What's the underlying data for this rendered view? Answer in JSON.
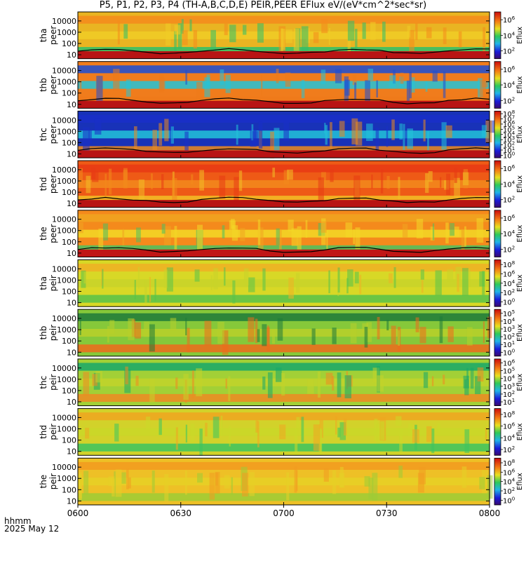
{
  "title": "P5, P1, P2, P3, P4 (TH-A,B,C,D,E) PEIR,PEER EFlux eV/(eV*cm^2*sec*sr)",
  "footer": {
    "hhmm": "hhmm",
    "date": "2025 May 12"
  },
  "colorbar_label": "Eflux",
  "x_ticks": [
    "0600",
    "0630",
    "0700",
    "0730",
    "0800"
  ],
  "chart_data": {
    "type": "heatmap",
    "x_range": [
      "0600",
      "0800"
    ],
    "x_unit": "hhmm",
    "date": "2025 May 12",
    "panels": [
      {
        "probe": "tha",
        "species": "peer",
        "ylabel": [
          "tha",
          "peer"
        ],
        "y_ticks": [
          "10",
          "100",
          "1000",
          "10000"
        ],
        "y_scale": "log",
        "cb_ticks": [
          "10^2",
          "10^4",
          "10^6"
        ],
        "cb_scale": "log",
        "bg_color": "#e9b422",
        "low_band_color": "#b81414",
        "hot_band": [
          0.86,
          1.0
        ],
        "band_stripe": "#2ec06a",
        "bands": [
          "#f48a1c",
          "#f0cc26",
          "#2ec06a"
        ],
        "scpot_color": "#000000"
      },
      {
        "probe": "thb",
        "species": "peer",
        "ylabel": [
          "thb",
          "peer"
        ],
        "y_ticks": [
          "10",
          "100",
          "1000",
          "10000"
        ],
        "y_scale": "log",
        "cb_ticks": [
          "10^2",
          "10^4",
          "10^6"
        ],
        "cb_scale": "log",
        "bg_color": "#f07c1c",
        "low_band_color": "#b81414",
        "bands": [
          "#1a4dd6",
          "#22c4d8",
          "#ee7a1a"
        ]
      },
      {
        "probe": "thc",
        "species": "peer",
        "ylabel": [
          "thc",
          "peer"
        ],
        "y_ticks": [
          "10",
          "100",
          "1000",
          "10000"
        ],
        "y_scale": "log",
        "cb_ticks": [
          "10^0",
          "10^1",
          "10^2",
          "10^3",
          "10^4",
          "10^5",
          "10^6",
          "10^7",
          "10^8"
        ],
        "cb_scale": "log",
        "bg_color": "#1832b8",
        "low_band_color": "#b81414",
        "bands": [
          "#1a2fc8",
          "#22c4d8",
          "#ee8a1a"
        ]
      },
      {
        "probe": "thd",
        "species": "peer",
        "ylabel": [
          "thd",
          "peer"
        ],
        "y_ticks": [
          "10",
          "100",
          "1000",
          "10000"
        ],
        "y_scale": "log",
        "cb_ticks": [
          "10^2",
          "10^4",
          "10^6"
        ],
        "cb_scale": "log",
        "bg_color": "#ee5a16",
        "low_band_color": "#b81414",
        "bands": [
          "#e83a14",
          "#f28a1c",
          "#f2c026"
        ]
      },
      {
        "probe": "the",
        "species": "peer",
        "ylabel": [
          "the",
          "peer"
        ],
        "y_ticks": [
          "10",
          "100",
          "1000",
          "10000"
        ],
        "y_scale": "log",
        "cb_ticks": [
          "10^2",
          "10^4",
          "10^6"
        ],
        "cb_scale": "log",
        "bg_color": "#f48a1c",
        "low_band_color": "#c01616",
        "bands": [
          "#f0a420",
          "#f2d826",
          "#4cc060"
        ]
      },
      {
        "probe": "tha",
        "species": "peir",
        "ylabel": [
          "tha",
          "peir"
        ],
        "y_ticks": [
          "10",
          "100",
          "1000",
          "10000"
        ],
        "y_scale": "log",
        "cb_ticks": [
          "10^0",
          "10^2",
          "10^4",
          "10^6",
          "10^8"
        ],
        "cb_scale": "log",
        "bg_color": "#d8d826",
        "bands": [
          "#f0b024",
          "#c8d42a",
          "#58c24a"
        ]
      },
      {
        "probe": "thb",
        "species": "peir",
        "ylabel": [
          "thb",
          "peir"
        ],
        "y_ticks": [
          "10",
          "100",
          "1000",
          "10000"
        ],
        "y_scale": "log",
        "cb_ticks": [
          "10^0",
          "10^1",
          "10^2",
          "10^3",
          "10^4",
          "10^5"
        ],
        "cb_scale": "log",
        "bg_color": "#86c83a",
        "bands": [
          "#1e7a3a",
          "#b8d02a",
          "#ee6a1c"
        ]
      },
      {
        "probe": "thc",
        "species": "peir",
        "ylabel": [
          "thc",
          "peir"
        ],
        "y_ticks": [
          "10",
          "100",
          "1000",
          "10000"
        ],
        "y_scale": "log",
        "cb_ticks": [
          "10^1",
          "10^2",
          "10^3",
          "10^4",
          "10^5",
          "10^6"
        ],
        "cb_scale": "log",
        "bg_color": "#a2d036",
        "bands": [
          "#18a86a",
          "#c2d42a",
          "#ee8a22"
        ]
      },
      {
        "probe": "thd",
        "species": "peir",
        "ylabel": [
          "thd",
          "peir"
        ],
        "y_ticks": [
          "10",
          "100",
          "1000",
          "10000"
        ],
        "y_scale": "log",
        "cb_ticks": [
          "10^2",
          "10^4",
          "10^6",
          "10^8"
        ],
        "cb_scale": "log",
        "bg_color": "#d2d22a",
        "bands": [
          "#f0a620",
          "#cad828",
          "#3cc460"
        ]
      },
      {
        "probe": "the",
        "species": "peir",
        "ylabel": [
          "the",
          "peir"
        ],
        "y_ticks": [
          "10",
          "100",
          "1000",
          "10000"
        ],
        "y_scale": "log",
        "cb_ticks": [
          "10^0",
          "10^2",
          "10^4",
          "10^6",
          "10^8"
        ],
        "cb_scale": "log",
        "bg_color": "#eec026",
        "bands": [
          "#f29a20",
          "#e6d026",
          "#9ccc36"
        ]
      }
    ]
  }
}
